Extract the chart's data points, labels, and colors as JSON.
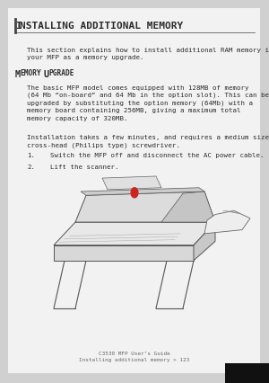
{
  "bg_color": "#d0d0d0",
  "page_bg": "#f2f2f2",
  "title": "NSTALLING ADDITIONAL MEMORY",
  "title_prefix": "I",
  "title_bar_color": "#444444",
  "footer_line1": "C3530 MFP User’s Guide",
  "footer_line2": "Installing additional memory > 123",
  "para1": "This section explains how to install additional RAM memory into\nyour MFP as a memory upgrade.",
  "para2": "The basic MFP model comes equipped with 128MB of memory\n(64 Mb “on-board” and 64 Mb in the option slot). This can be\nupgraded by substituting the option memory (64Mb) with a\nmemory board containing 256MB, giving a maximum total\nmemory capacity of 320MB.",
  "para3": "Installation takes a few minutes, and requires a medium size\ncross-head (Philips type) screwdriver.",
  "item1": "Switch the MFP off and disconnect the AC power cable.",
  "item2": "Lift the scanner.",
  "text_color": "#2a2a2a",
  "footer_color": "#666666",
  "font_size_title": 8.0,
  "font_size_body": 5.3,
  "font_size_section": 6.2,
  "font_size_footer": 4.3
}
